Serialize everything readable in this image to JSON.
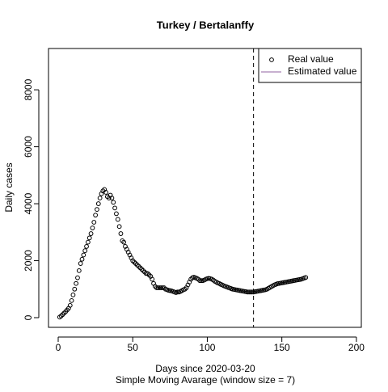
{
  "chart_data": {
    "type": "scatter",
    "title": "Turkey / Bertalanffy",
    "xlabel": "Days since 2020-03-20",
    "subtitle": "Simple Moving Avarage (window size = 7)",
    "ylabel": "Daily cases",
    "xlim": [
      -6.5,
      203.3
    ],
    "ylim": [
      -340,
      9450
    ],
    "xticks": [
      0,
      50,
      100,
      150,
      200
    ],
    "yticks": [
      0,
      2000,
      4000,
      6000,
      8000
    ],
    "vline": 131,
    "legend": "top-right",
    "series": [
      {
        "name": "Real value",
        "color": "#000000",
        "x": [
          1,
          2,
          3,
          4,
          5,
          6,
          7,
          8,
          9,
          10,
          11,
          12,
          13,
          14,
          15,
          16,
          17,
          18,
          19,
          20,
          21,
          22,
          23,
          24,
          25,
          26,
          27,
          28,
          29,
          30,
          31,
          32,
          33,
          34,
          35,
          36,
          37,
          38,
          39,
          40,
          41,
          42,
          43,
          44,
          45,
          46,
          47,
          48,
          49,
          50,
          51,
          52,
          53,
          54,
          55,
          56,
          57,
          58,
          59,
          60,
          61,
          62,
          63,
          64,
          65,
          66,
          67,
          68,
          69,
          70,
          71,
          72,
          73,
          74,
          75,
          76,
          77,
          78,
          79,
          80,
          81,
          82,
          83,
          84,
          85,
          86,
          87,
          88,
          89,
          90,
          91,
          92,
          93,
          94,
          95,
          96,
          97,
          98,
          99,
          100,
          101,
          102,
          103,
          104,
          105,
          106,
          107,
          108,
          109,
          110,
          111,
          112,
          113,
          114,
          115,
          116,
          117,
          118,
          119,
          120,
          121,
          122,
          123,
          124,
          125,
          126,
          127,
          128,
          129,
          130,
          131,
          132,
          133,
          134,
          135,
          136,
          137,
          138,
          139,
          140,
          141,
          142,
          143,
          144,
          145,
          146,
          147,
          148,
          149,
          150,
          151,
          152,
          153,
          154,
          155,
          156,
          157,
          158,
          159,
          160,
          161,
          162,
          163,
          164,
          165,
          166
        ],
        "values": [
          20,
          60,
          110,
          160,
          210,
          270,
          330,
          430,
          600,
          800,
          1000,
          1200,
          1400,
          1650,
          1900,
          2050,
          2200,
          2350,
          2500,
          2650,
          2800,
          2950,
          3150,
          3350,
          3600,
          3800,
          4000,
          4200,
          4350,
          4450,
          4500,
          4400,
          4250,
          4200,
          4300,
          4200,
          4050,
          3850,
          3650,
          3450,
          3200,
          2950,
          2700,
          2650,
          2500,
          2400,
          2300,
          2200,
          2100,
          2000,
          1950,
          1900,
          1850,
          1800,
          1750,
          1700,
          1650,
          1600,
          1550,
          1550,
          1500,
          1450,
          1350,
          1200,
          1100,
          1050,
          1050,
          1050,
          1050,
          1050,
          1050,
          1000,
          980,
          960,
          950,
          940,
          920,
          900,
          880,
          900,
          900,
          920,
          950,
          980,
          1000,
          1050,
          1150,
          1250,
          1350,
          1400,
          1420,
          1400,
          1380,
          1350,
          1300,
          1300,
          1300,
          1320,
          1350,
          1370,
          1380,
          1370,
          1350,
          1320,
          1280,
          1250,
          1220,
          1200,
          1170,
          1150,
          1120,
          1100,
          1080,
          1060,
          1040,
          1020,
          1000,
          990,
          980,
          970,
          960,
          950,
          940,
          930,
          920,
          910,
          900,
          900,
          900,
          900,
          900,
          910,
          920,
          930,
          940,
          950,
          960,
          970,
          980,
          1000,
          1030,
          1060,
          1090,
          1120,
          1150,
          1170,
          1190,
          1200,
          1210,
          1220,
          1230,
          1240,
          1250,
          1260,
          1270,
          1280,
          1290,
          1300,
          1310,
          1320,
          1330,
          1340,
          1350,
          1370,
          1390,
          1410
        ]
      },
      {
        "name": "Estimated value",
        "color": "#9060a0",
        "x": [],
        "values": []
      }
    ]
  }
}
